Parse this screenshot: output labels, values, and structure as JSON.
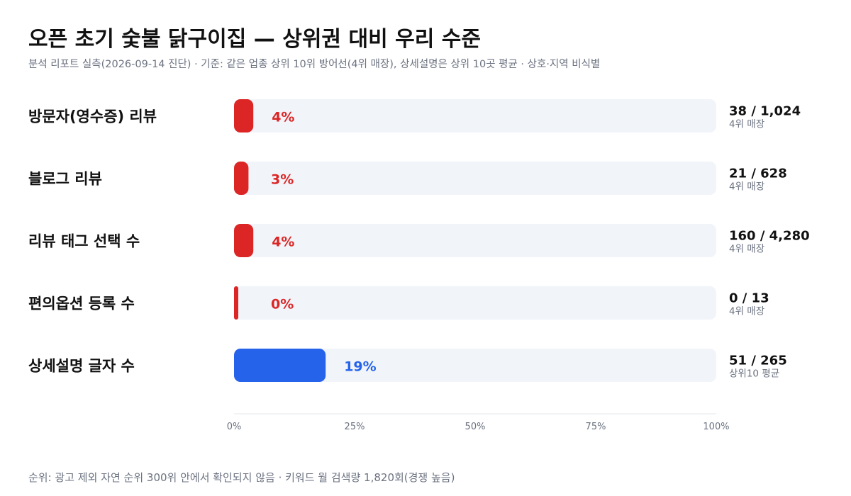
{
  "title": "오픈 초기 숯불 닭구이집 — 상위권 대비 우리 수준",
  "subtitle": "분석 리포트 실측(2026-09-14 진단) · 기준: 같은 업종 상위 10위 방어선(4위 매장), 상세설명은 상위 10곳 평균 · 상호·지역 비식별",
  "footer": "순위: 광고 제외 자연 순위 300위 안에서 확인되지 않음 · 키워드 월 검색량 1,820회(경쟁 높음)",
  "colors": {
    "low": "#dc2626",
    "ok": "#2563eb",
    "track": "#f1f4f9",
    "label_low": "#dc2626",
    "label_ok": "#2563eb"
  },
  "chart_data": {
    "type": "bar",
    "orientation": "horizontal",
    "xlim": [
      0,
      100
    ],
    "x_ticks": [
      "0%",
      "25%",
      "50%",
      "75%",
      "100%"
    ],
    "categories": [
      "방문자(영수증) 리뷰",
      "블로그 리뷰",
      "리뷰 태그 선택 수",
      "편의옵션 등록 수",
      "상세설명 글자 수"
    ],
    "values": [
      4,
      3,
      4,
      0,
      19
    ],
    "value_labels": [
      "4%",
      "3%",
      "4%",
      "0%",
      "19%"
    ],
    "counts": [
      "38 / 1,024",
      "21 / 628",
      "160 / 4,280",
      "0 / 13",
      "51 / 265"
    ],
    "benchmarks": [
      "4위 매장",
      "4위 매장",
      "4위 매장",
      "4위 매장",
      "상위10 평균"
    ],
    "bar_status": [
      "low",
      "low",
      "low",
      "low",
      "ok"
    ],
    "grid": false,
    "legend": "none"
  }
}
